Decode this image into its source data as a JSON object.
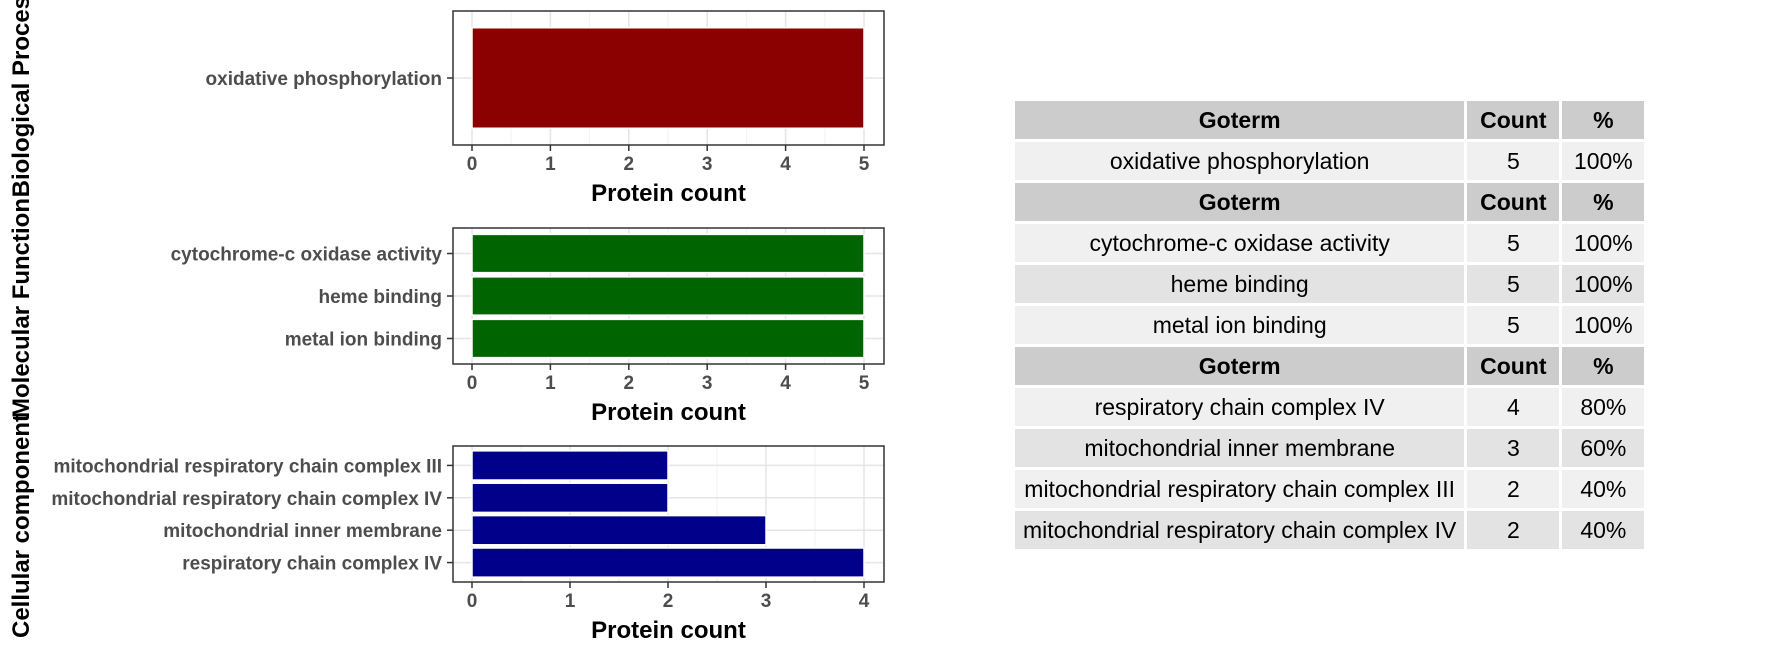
{
  "chart_data": [
    {
      "type": "bar",
      "orientation": "horizontal",
      "facet_label": "Biological Process",
      "categories": [
        "oxidative phosphorylation"
      ],
      "values": [
        5
      ],
      "xlabel": "Protein count",
      "xlim": [
        0,
        5
      ],
      "xticks": [
        0,
        1,
        2,
        3,
        4,
        5
      ],
      "color": "#8b0000",
      "grid": true
    },
    {
      "type": "bar",
      "orientation": "horizontal",
      "facet_label": "Molecular Function",
      "categories": [
        "metal ion binding",
        "heme binding",
        "cytochrome-c oxidase activity"
      ],
      "values": [
        5,
        5,
        5
      ],
      "xlabel": "Protein count",
      "xlim": [
        0,
        5
      ],
      "xticks": [
        0,
        1,
        2,
        3,
        4,
        5
      ],
      "color": "#006400",
      "grid": true
    },
    {
      "type": "bar",
      "orientation": "horizontal",
      "facet_label": "Cellular component",
      "categories": [
        "respiratory chain complex IV",
        "mitochondrial inner membrane",
        "mitochondrial respiratory chain complex IV",
        "mitochondrial respiratory chain complex III"
      ],
      "values": [
        4,
        3,
        2,
        2
      ],
      "xlabel": "Protein count",
      "xlim": [
        0,
        4
      ],
      "xticks": [
        0,
        1,
        2,
        3,
        4
      ],
      "color": "#00008b",
      "grid": true
    }
  ],
  "table": {
    "columns": [
      "Goterm",
      "Count",
      "%"
    ],
    "sections": [
      {
        "rows": [
          [
            "oxidative phosphorylation",
            "5",
            "100%"
          ]
        ]
      },
      {
        "rows": [
          [
            "cytochrome-c oxidase activity",
            "5",
            "100%"
          ],
          [
            "heme binding",
            "5",
            "100%"
          ],
          [
            "metal ion binding",
            "5",
            "100%"
          ]
        ]
      },
      {
        "rows": [
          [
            "respiratory chain complex IV",
            "4",
            "80%"
          ],
          [
            "mitochondrial inner membrane",
            "3",
            "60%"
          ],
          [
            "mitochondrial respiratory chain complex III",
            "2",
            "40%"
          ],
          [
            "mitochondrial respiratory chain complex IV",
            "2",
            "40%"
          ]
        ]
      }
    ]
  }
}
